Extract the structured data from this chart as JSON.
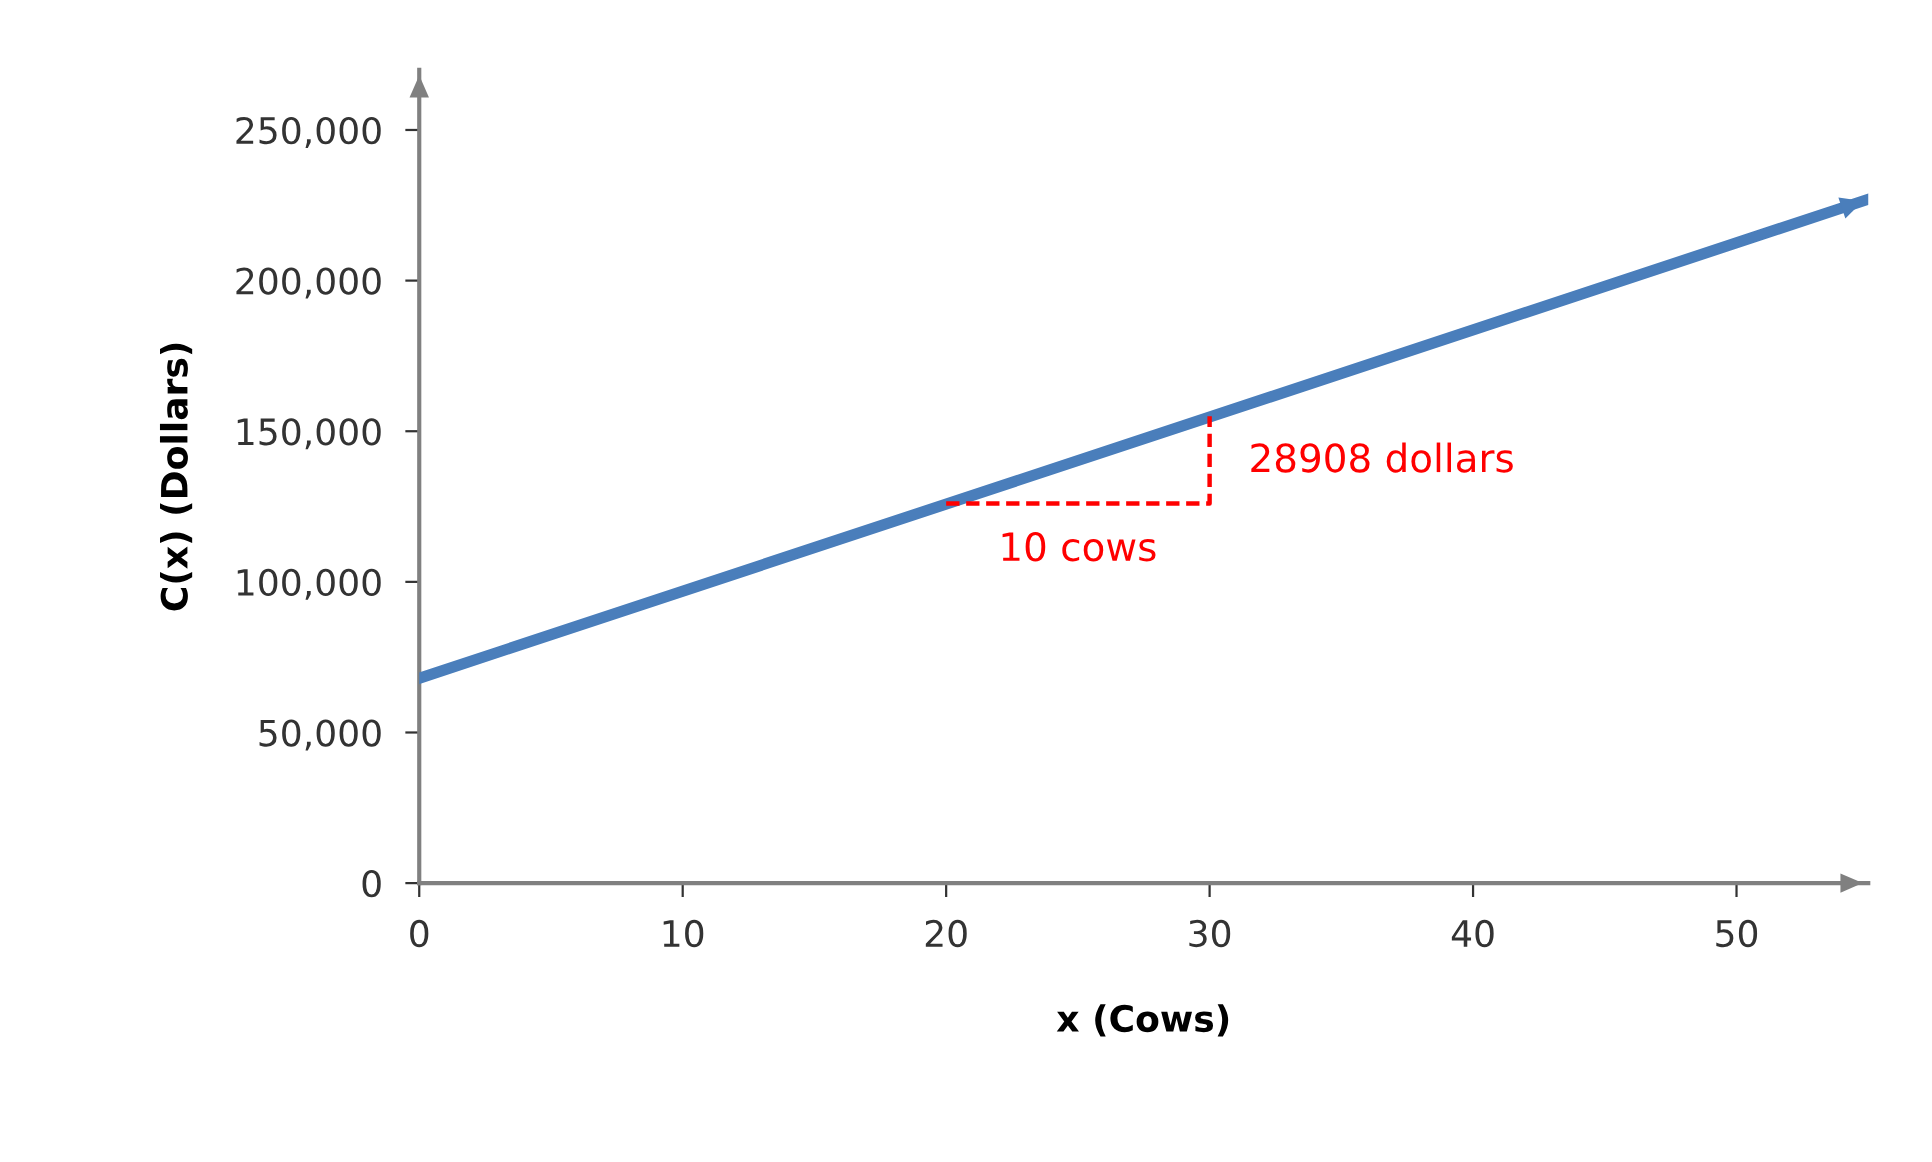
{
  "chart_data": {
    "type": "line",
    "xlabel": "x (Cows)",
    "ylabel": "C(x) (Dollars)",
    "xlim": [
      0,
      55
    ],
    "ylim": [
      0,
      270000
    ],
    "xticks": [
      0,
      10,
      20,
      30,
      40,
      50
    ],
    "yticks": [
      {
        "value": 0,
        "label": "0"
      },
      {
        "value": 50000,
        "label": "50,000"
      },
      {
        "value": 100000,
        "label": "100,000"
      },
      {
        "value": 150000,
        "label": "150,000"
      },
      {
        "value": 200000,
        "label": "200,000"
      },
      {
        "value": 250000,
        "label": "250,000"
      }
    ],
    "grid": false,
    "legend": false,
    "series": [
      {
        "color": "#4a7ebb",
        "x": [
          0,
          55
        ],
        "values": [
          68000,
          227000
        ]
      },
      {
        "color": "#ff0000",
        "line_style": "dashed",
        "x": [
          20,
          30,
          30
        ],
        "values": [
          126000,
          126000,
          155000
        ]
      }
    ],
    "annotations": [
      {
        "text": "28908 dollars",
        "x": 30,
        "y": 140000
      },
      {
        "text": "10 cows",
        "x": 25,
        "y": 126000
      }
    ]
  }
}
